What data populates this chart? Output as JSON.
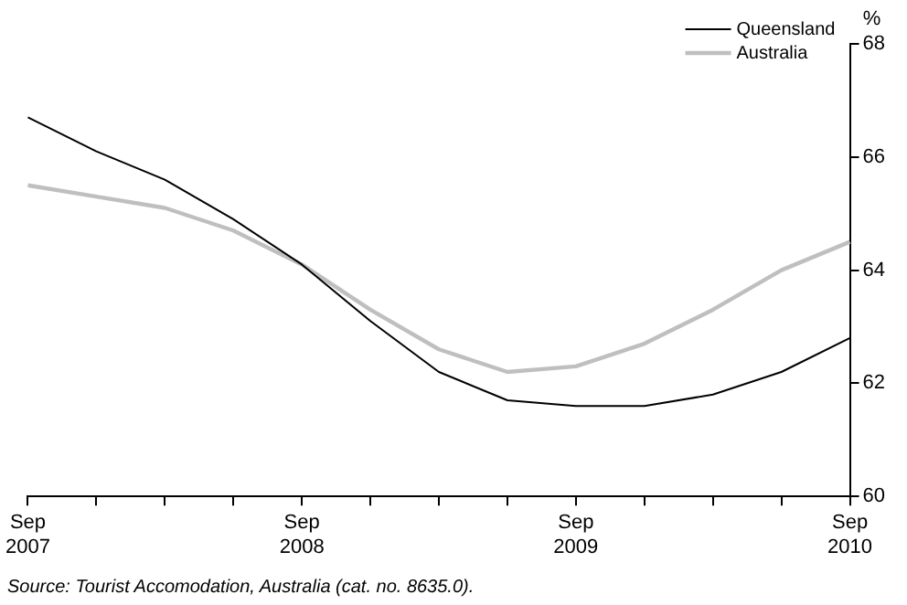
{
  "chart_data": {
    "type": "line",
    "ylabel": "%",
    "categories": [
      "Sep 2007",
      null,
      null,
      null,
      "Sep 2008",
      null,
      null,
      null,
      "Sep 2009",
      null,
      null,
      null,
      "Sep 2010"
    ],
    "series": [
      {
        "name": "Queensland",
        "color": "#000000",
        "values": [
          66.7,
          66.1,
          65.6,
          64.9,
          64.1,
          63.1,
          62.2,
          61.7,
          61.6,
          61.6,
          61.8,
          62.2,
          62.8
        ]
      },
      {
        "name": "Australia",
        "color": "#bfbfbf",
        "values": [
          65.5,
          65.3,
          65.1,
          64.7,
          64.1,
          63.3,
          62.6,
          62.2,
          62.3,
          62.7,
          63.3,
          64.0,
          64.5
        ]
      }
    ],
    "ylim": [
      60,
      68
    ],
    "yticks": [
      60,
      62,
      64,
      66,
      68
    ],
    "grid": false,
    "legend": "top right",
    "marker": "none",
    "line_style": "solid",
    "annotations": [
      "Source: Tourist Accomodation, Australia (cat. no. 8635.0)."
    ]
  }
}
